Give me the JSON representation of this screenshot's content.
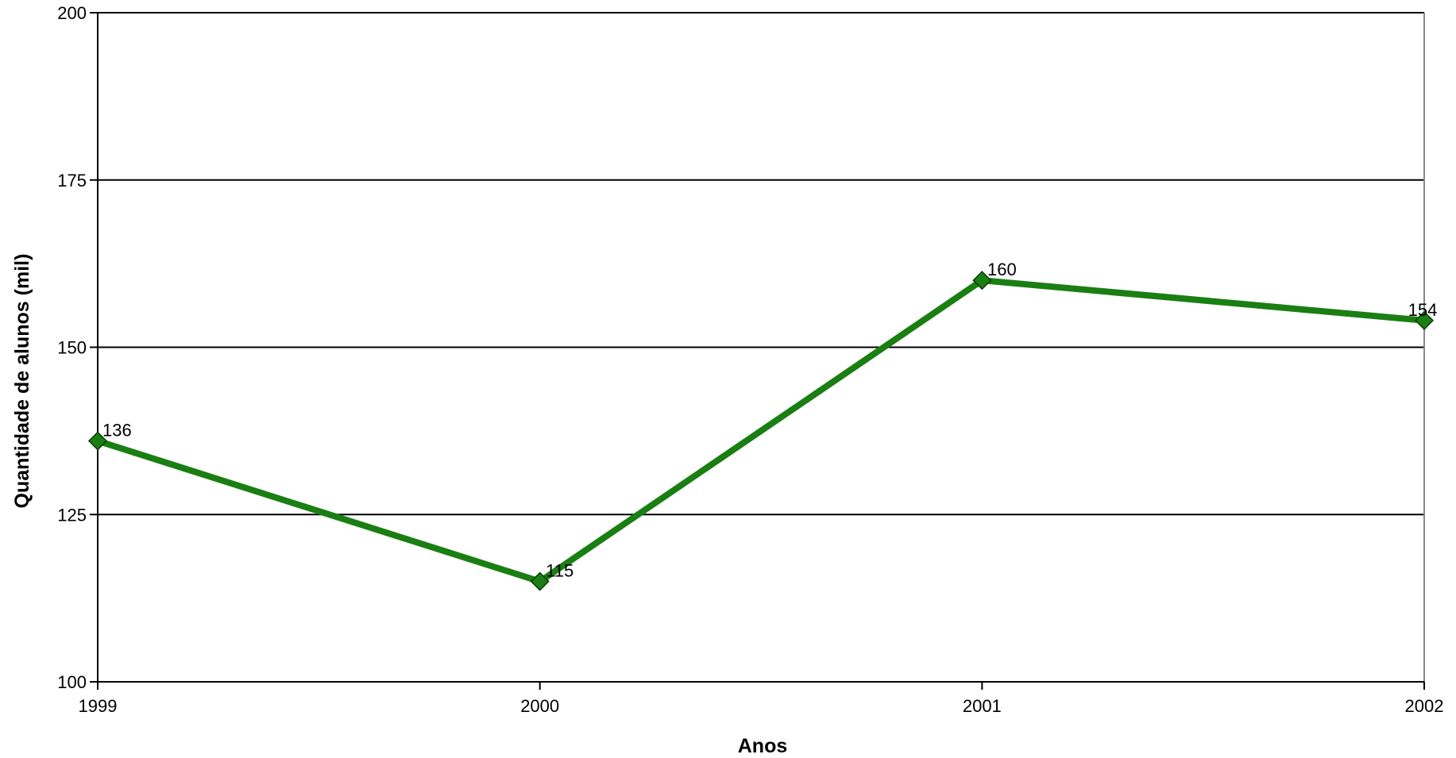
{
  "chart_data": {
    "type": "line",
    "title": "",
    "xlabel": "Anos",
    "ylabel": "Quantidade de alunos (mil)",
    "categories": [
      "1999",
      "2000",
      "2001",
      "2002"
    ],
    "series": [
      {
        "values": [
          136,
          115,
          160,
          154
        ],
        "data_labels": [
          "136",
          "115",
          "160",
          "154"
        ],
        "color": "#1a7f12",
        "marker": "diamond"
      }
    ],
    "ylim": [
      100,
      200
    ],
    "yticks": [
      100,
      125,
      150,
      175,
      200
    ],
    "ytick_labels": [
      "100",
      "125",
      "150",
      "175",
      "200"
    ],
    "grid": true,
    "legend": "none"
  }
}
